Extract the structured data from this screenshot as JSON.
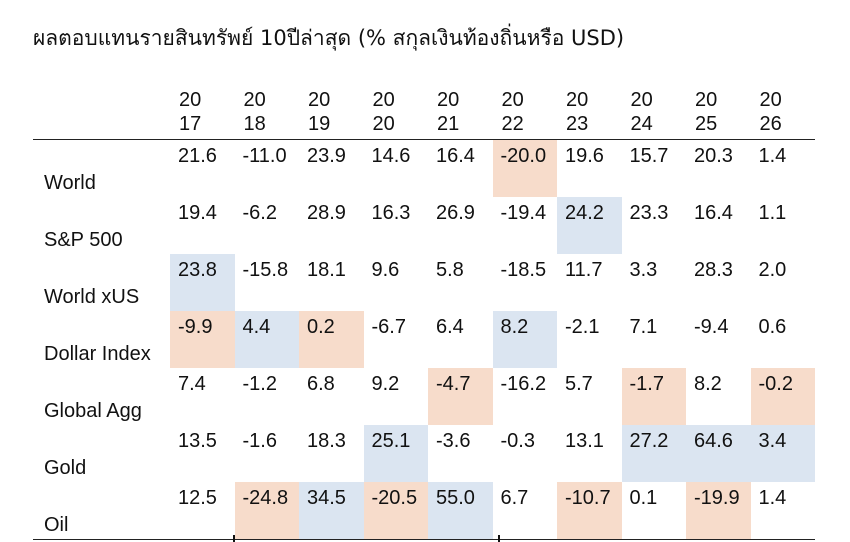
{
  "title": "ผลตอบแทนรายสินทรัพย์ 10ปีล่าสุด (% สกุลเงินท้องถิ่นหรือ USD)",
  "chart_data": {
    "type": "table",
    "title": "ผลตอบแทนรายสินทรัพย์ 10ปีล่าสุด (% สกุลเงินท้องถิ่นหรือ USD)",
    "columns": [
      "2017",
      "2018",
      "2019",
      "2020",
      "2021",
      "2022",
      "2023",
      "2024",
      "2025",
      "2026"
    ],
    "rows": [
      {
        "label": "World",
        "values": [
          "21.6",
          "-11.0",
          "23.9",
          "14.6",
          "16.4",
          "-20.0",
          "19.6",
          "15.7",
          "20.3",
          "1.4"
        ],
        "highlight": [
          null,
          null,
          null,
          null,
          null,
          "neg",
          null,
          null,
          null,
          null
        ]
      },
      {
        "label": "S&P 500",
        "values": [
          "19.4",
          "-6.2",
          "28.9",
          "16.3",
          "26.9",
          "-19.4",
          "24.2",
          "23.3",
          "16.4",
          "1.1"
        ],
        "highlight": [
          null,
          null,
          null,
          null,
          null,
          null,
          "pos",
          null,
          null,
          null
        ]
      },
      {
        "label": "World xUS",
        "values": [
          "23.8",
          "-15.8",
          "18.1",
          "9.6",
          "5.8",
          "-18.5",
          "11.7",
          "3.3",
          "28.3",
          "2.0"
        ],
        "highlight": [
          "pos",
          null,
          null,
          null,
          null,
          null,
          null,
          null,
          null,
          null
        ]
      },
      {
        "label": "Dollar Index",
        "values": [
          "-9.9",
          "4.4",
          "0.2",
          "-6.7",
          "6.4",
          "8.2",
          "-2.1",
          "7.1",
          "-9.4",
          "0.6"
        ],
        "highlight": [
          "neg",
          "pos",
          "neg",
          null,
          null,
          "pos",
          null,
          null,
          null,
          null
        ]
      },
      {
        "label": "Global Agg",
        "values": [
          "7.4",
          "-1.2",
          "6.8",
          "9.2",
          "-4.7",
          "-16.2",
          "5.7",
          "-1.7",
          "8.2",
          "-0.2"
        ],
        "highlight": [
          null,
          null,
          null,
          null,
          "neg",
          null,
          null,
          "neg",
          null,
          "neg"
        ]
      },
      {
        "label": "Gold",
        "values": [
          "13.5",
          "-1.6",
          "18.3",
          "25.1",
          "-3.6",
          "-0.3",
          "13.1",
          "27.2",
          "64.6",
          "3.4"
        ],
        "highlight": [
          null,
          null,
          null,
          "pos",
          null,
          null,
          null,
          "pos",
          "pos",
          "pos"
        ]
      },
      {
        "label": "Oil",
        "values": [
          "12.5",
          "-24.8",
          "34.5",
          "-20.5",
          "55.0",
          "6.7",
          "-10.7",
          "0.1",
          "-19.9",
          "1.4"
        ],
        "highlight": [
          null,
          "neg",
          "pos",
          "neg",
          "pos",
          null,
          "neg",
          null,
          "neg",
          null
        ]
      }
    ],
    "highlight_colors": {
      "pos": "#dbe5f1",
      "neg": "#f7dccb"
    }
  }
}
